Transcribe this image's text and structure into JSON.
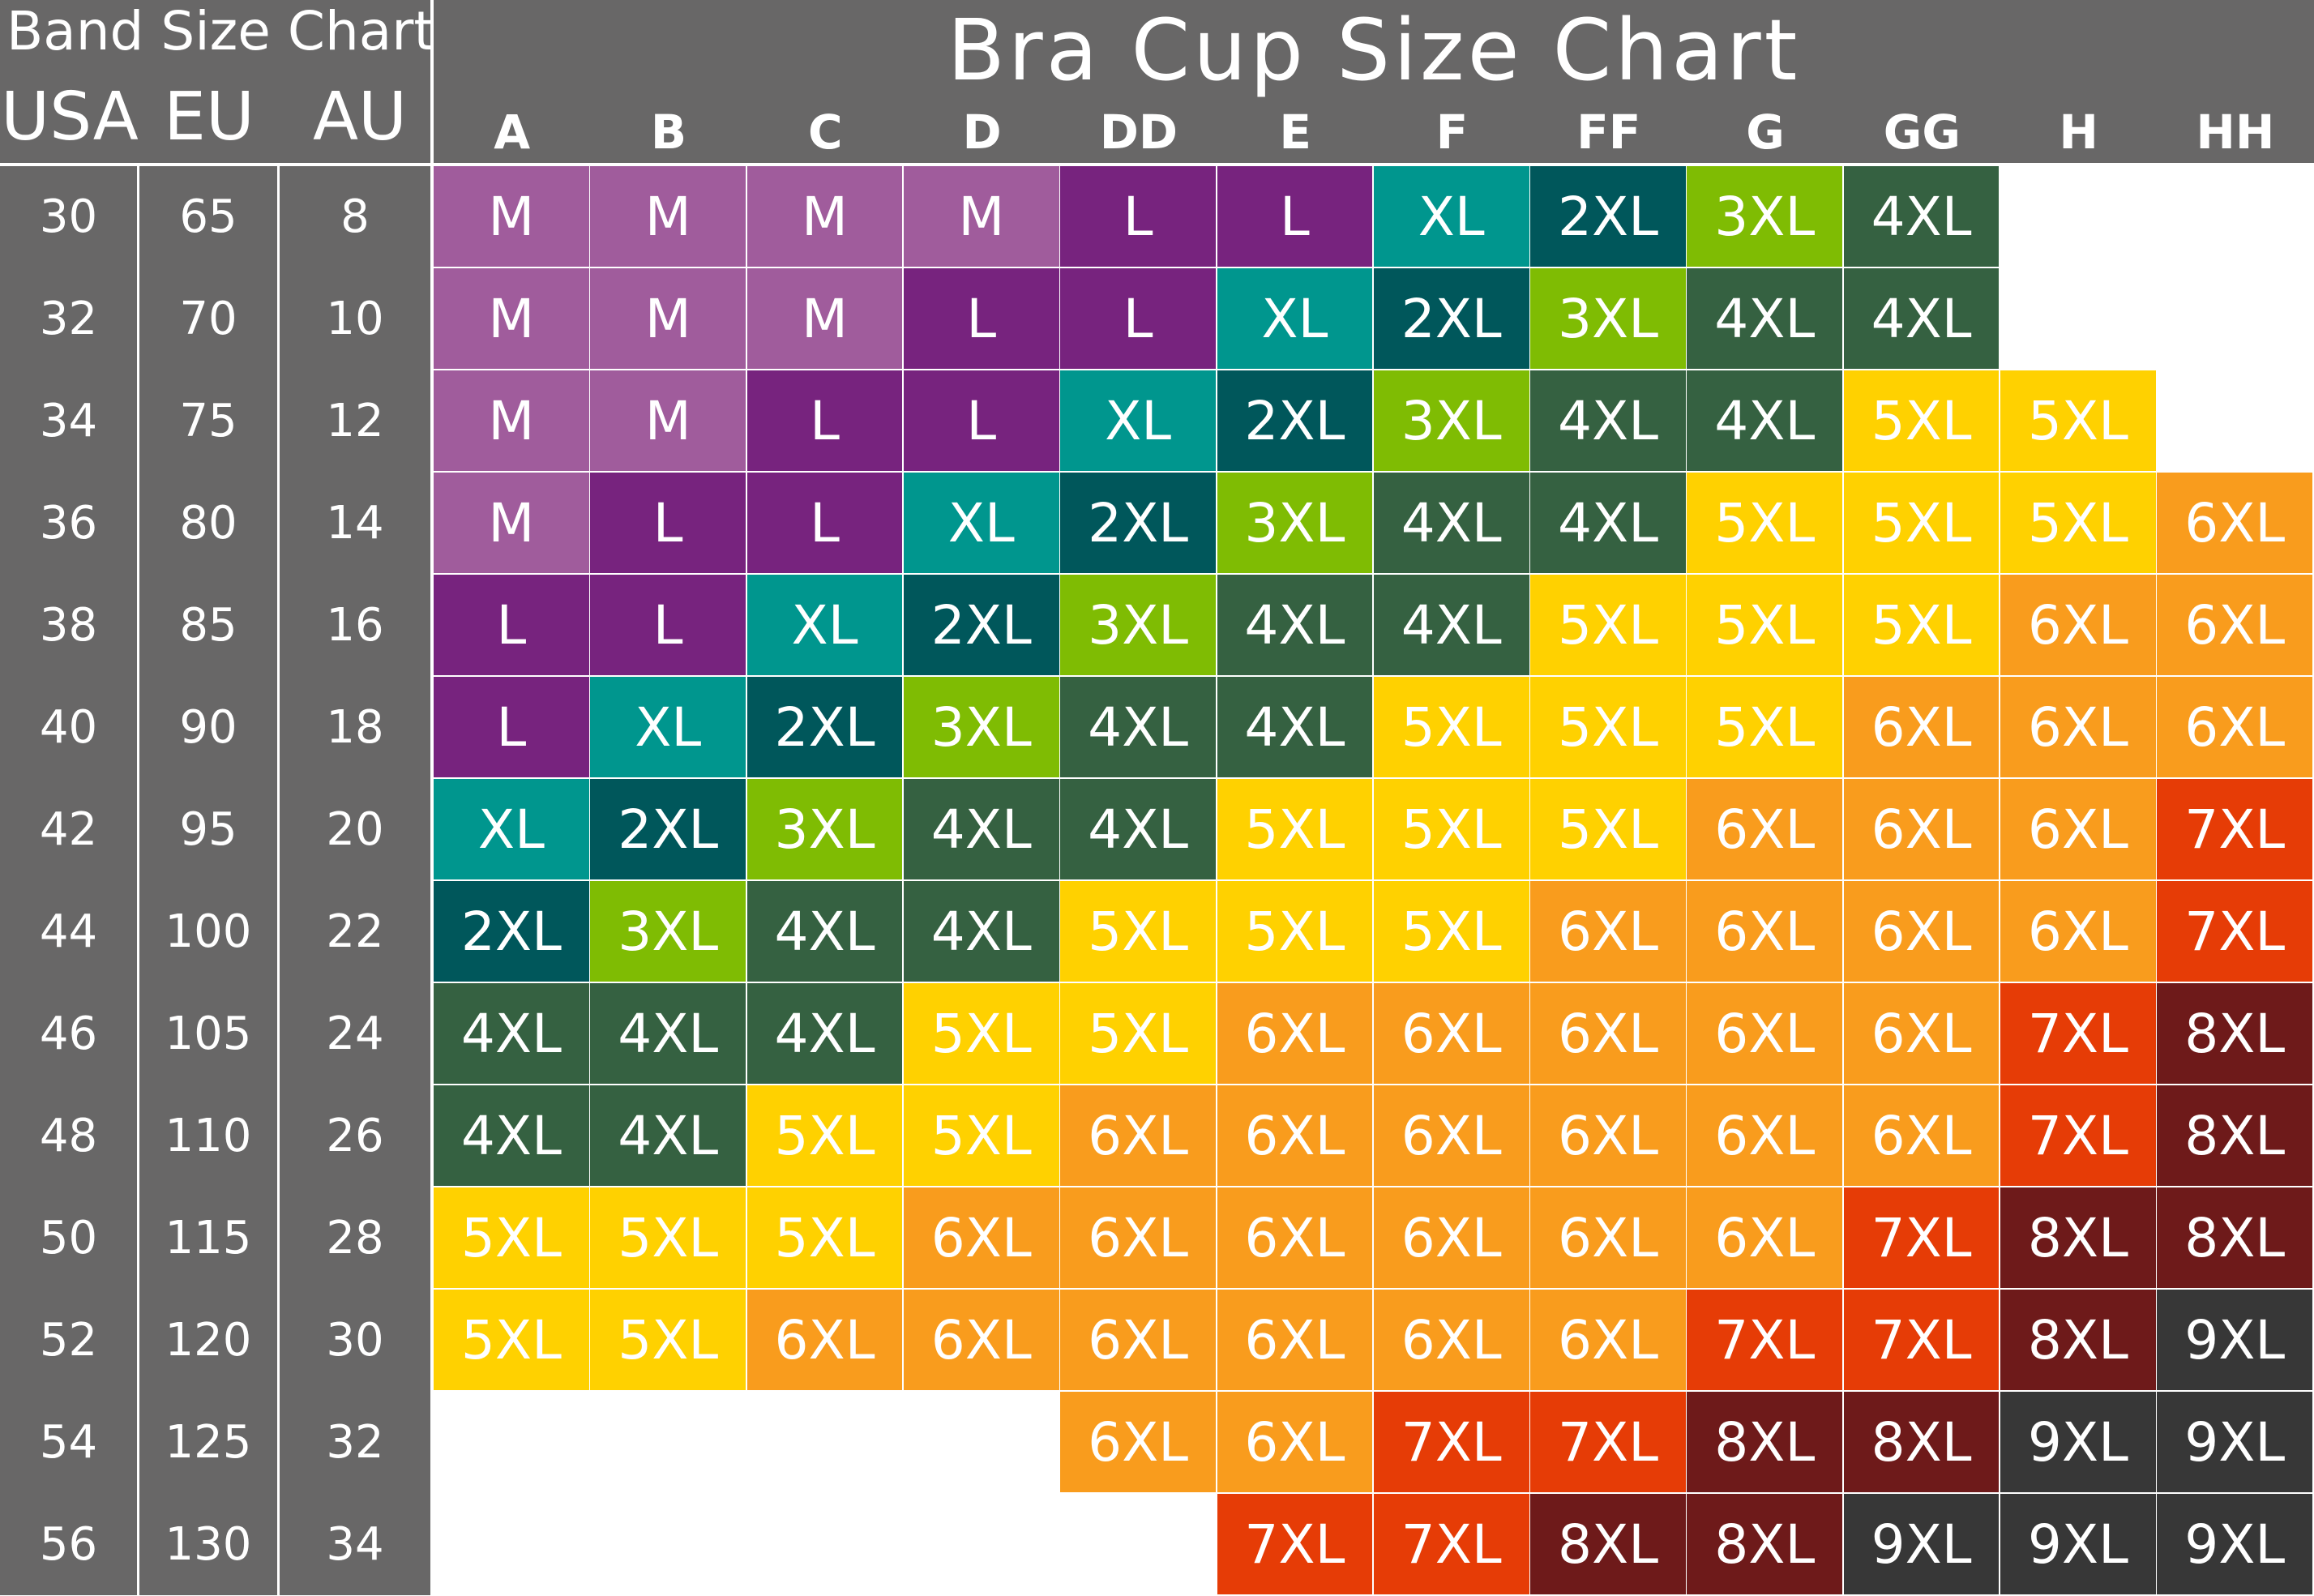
{
  "band_chart": {
    "title": "Band Size Chart",
    "headers": [
      "USA",
      "EU",
      "AU"
    ]
  },
  "chart_data": {
    "type": "table",
    "title": "Bra Cup Size Chart",
    "band_sizes": [
      {
        "usa": "30",
        "eu": "65",
        "au": "8"
      },
      {
        "usa": "32",
        "eu": "70",
        "au": "10"
      },
      {
        "usa": "34",
        "eu": "75",
        "au": "12"
      },
      {
        "usa": "36",
        "eu": "80",
        "au": "14"
      },
      {
        "usa": "38",
        "eu": "85",
        "au": "16"
      },
      {
        "usa": "40",
        "eu": "90",
        "au": "18"
      },
      {
        "usa": "42",
        "eu": "95",
        "au": "20"
      },
      {
        "usa": "44",
        "eu": "100",
        "au": "22"
      },
      {
        "usa": "46",
        "eu": "105",
        "au": "24"
      },
      {
        "usa": "48",
        "eu": "110",
        "au": "26"
      },
      {
        "usa": "50",
        "eu": "115",
        "au": "28"
      },
      {
        "usa": "52",
        "eu": "120",
        "au": "30"
      },
      {
        "usa": "54",
        "eu": "125",
        "au": "32"
      },
      {
        "usa": "56",
        "eu": "130",
        "au": "34"
      }
    ],
    "cups": [
      "A",
      "B",
      "C",
      "D",
      "DD",
      "E",
      "F",
      "FF",
      "G",
      "GG",
      "H",
      "HH"
    ],
    "sizes": [
      [
        "M",
        "M",
        "M",
        "M",
        "L",
        "L",
        "XL",
        "2XL",
        "3XL",
        "4XL",
        "",
        ""
      ],
      [
        "M",
        "M",
        "M",
        "L",
        "L",
        "XL",
        "2XL",
        "3XL",
        "4XL",
        "4XL",
        "",
        ""
      ],
      [
        "M",
        "M",
        "L",
        "L",
        "XL",
        "2XL",
        "3XL",
        "4XL",
        "4XL",
        "5XL",
        "5XL",
        ""
      ],
      [
        "M",
        "L",
        "L",
        "XL",
        "2XL",
        "3XL",
        "4XL",
        "4XL",
        "5XL",
        "5XL",
        "5XL",
        "6XL"
      ],
      [
        "L",
        "L",
        "XL",
        "2XL",
        "3XL",
        "4XL",
        "4XL",
        "5XL",
        "5XL",
        "5XL",
        "6XL",
        "6XL"
      ],
      [
        "L",
        "XL",
        "2XL",
        "3XL",
        "4XL",
        "4XL",
        "5XL",
        "5XL",
        "5XL",
        "6XL",
        "6XL",
        "6XL"
      ],
      [
        "XL",
        "2XL",
        "3XL",
        "4XL",
        "4XL",
        "5XL",
        "5XL",
        "5XL",
        "6XL",
        "6XL",
        "6XL",
        "7XL"
      ],
      [
        "2XL",
        "3XL",
        "4XL",
        "4XL",
        "5XL",
        "5XL",
        "5XL",
        "6XL",
        "6XL",
        "6XL",
        "6XL",
        "7XL"
      ],
      [
        "4XL",
        "4XL",
        "4XL",
        "5XL",
        "5XL",
        "6XL",
        "6XL",
        "6XL",
        "6XL",
        "6XL",
        "7XL",
        "8XL"
      ],
      [
        "4XL",
        "4XL",
        "5XL",
        "5XL",
        "6XL",
        "6XL",
        "6XL",
        "6XL",
        "6XL",
        "6XL",
        "7XL",
        "8XL"
      ],
      [
        "5XL",
        "5XL",
        "5XL",
        "6XL",
        "6XL",
        "6XL",
        "6XL",
        "6XL",
        "6XL",
        "7XL",
        "8XL",
        "8XL"
      ],
      [
        "5XL",
        "5XL",
        "6XL",
        "6XL",
        "6XL",
        "6XL",
        "6XL",
        "6XL",
        "7XL",
        "7XL",
        "8XL",
        "9XL"
      ],
      [
        "",
        "",
        "",
        "",
        "6XL",
        "6XL",
        "7XL",
        "7XL",
        "8XL",
        "8XL",
        "9XL",
        "9XL"
      ],
      [
        "",
        "",
        "",
        "",
        "",
        "7XL",
        "7XL",
        "8XL",
        "8XL",
        "9XL",
        "9XL",
        "9XL"
      ]
    ],
    "size_colors": {
      "M": "#a05c9c",
      "L": "#77237e",
      "XL": "#00968e",
      "2XL": "#00575b",
      "3XL": "#7fbc03",
      "4XL": "#356141",
      "5XL": "#ffd100",
      "6XL": "#f99c1d",
      "7XL": "#e63c06",
      "8XL": "#6e1a1a",
      "9XL": "#373737"
    }
  }
}
